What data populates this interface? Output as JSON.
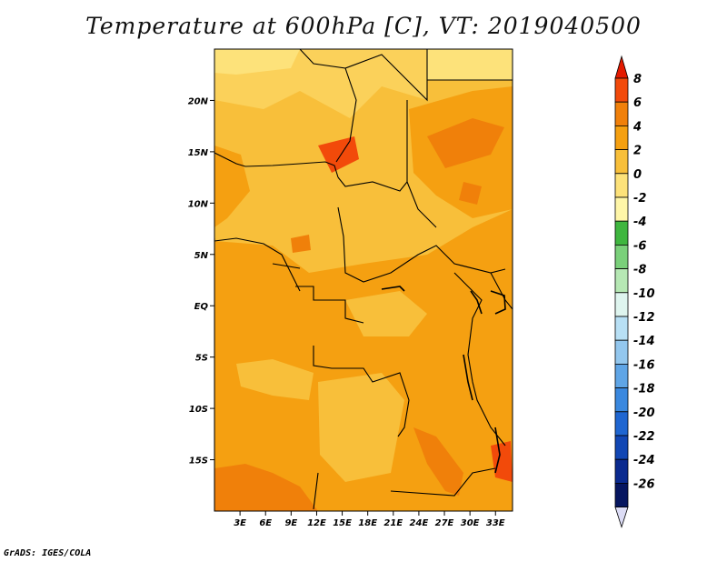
{
  "title": "Temperature at 600hPa [C], VT: 2019040500",
  "credit": "GrADS: IGES/COLA",
  "map": {
    "lon_range": [
      0,
      35
    ],
    "lat_range": [
      -20,
      25
    ],
    "lon_ticks": [
      "3E",
      "6E",
      "9E",
      "12E",
      "15E",
      "18E",
      "21E",
      "24E",
      "27E",
      "30E",
      "33E"
    ],
    "lat_ticks": [
      "20N",
      "15N",
      "10N",
      "5N",
      "EQ",
      "5S",
      "10S",
      "15S"
    ]
  },
  "colorbar": {
    "labels": [
      "8",
      "6",
      "4",
      "2",
      "0",
      "-2",
      "-4",
      "-6",
      "-8",
      "-10",
      "-12",
      "-14",
      "-16",
      "-18",
      "-20",
      "-22",
      "-24",
      "-26"
    ],
    "colors": [
      "#e31a00",
      "#f24a0a",
      "#f0800a",
      "#f5a011",
      "#f8bf3a",
      "#fde27a",
      "#fff6a8",
      "#3fb63f",
      "#7ad07a",
      "#b6e8b4",
      "#dff5ef",
      "#b8e0f5",
      "#93c7ee",
      "#5fa5e6",
      "#3a88df",
      "#1f66d1",
      "#1247b4",
      "#0a2a8f",
      "#061660"
    ],
    "lower_arrow_color": "#dcdcf5"
  }
}
